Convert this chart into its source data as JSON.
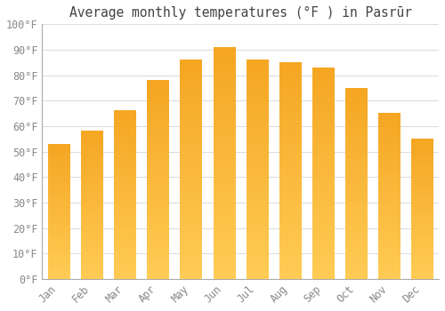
{
  "title": "Average monthly temperatures (°F ) in Pasrūr",
  "months": [
    "Jan",
    "Feb",
    "Mar",
    "Apr",
    "May",
    "Jun",
    "Jul",
    "Aug",
    "Sep",
    "Oct",
    "Nov",
    "Dec"
  ],
  "values": [
    53,
    58,
    66,
    78,
    86,
    91,
    86,
    85,
    83,
    75,
    65,
    55
  ],
  "bar_color_top": "#F5A623",
  "bar_color_bottom": "#FFCC55",
  "background_color": "#FFFFFF",
  "grid_color": "#DDDDDD",
  "text_color": "#888888",
  "title_color": "#444444",
  "ylim": [
    0,
    100
  ],
  "yticks": [
    0,
    10,
    20,
    30,
    40,
    50,
    60,
    70,
    80,
    90,
    100
  ],
  "ytick_labels": [
    "0°F",
    "10°F",
    "20°F",
    "30°F",
    "40°F",
    "50°F",
    "60°F",
    "70°F",
    "80°F",
    "90°F",
    "100°F"
  ],
  "title_fontsize": 10.5,
  "tick_fontsize": 8.5,
  "bar_width": 0.65
}
